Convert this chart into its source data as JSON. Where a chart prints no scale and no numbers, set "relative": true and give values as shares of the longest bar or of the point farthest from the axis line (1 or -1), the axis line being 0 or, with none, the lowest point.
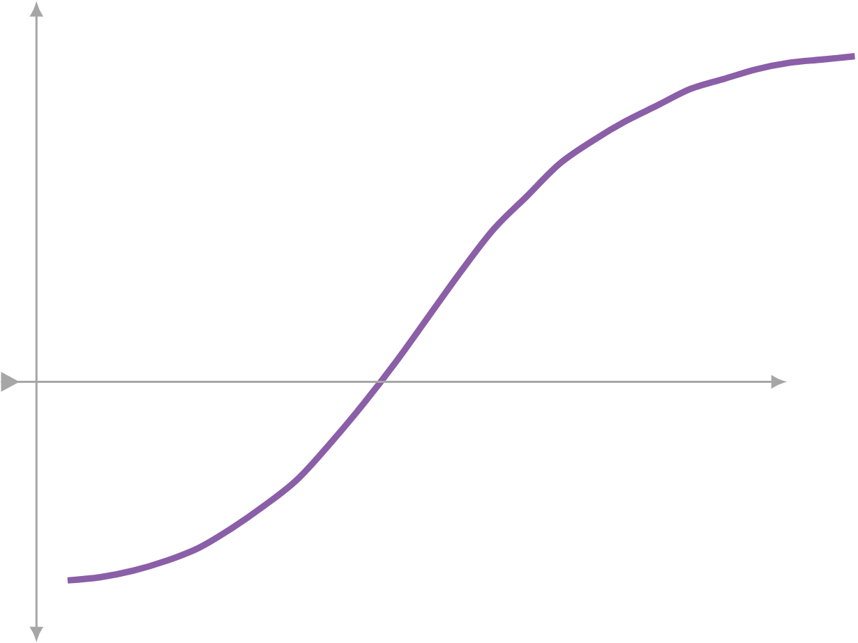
{
  "chart_data": {
    "type": "line",
    "relative": true,
    "color": "#8b5fa8",
    "categories": [
      null,
      null,
      null,
      null,
      null,
      null,
      null,
      null,
      null,
      null,
      null,
      null,
      null,
      null,
      null,
      null,
      null,
      null,
      null,
      null,
      null,
      null,
      null,
      null,
      null
    ],
    "values": [
      -0.61,
      -0.6,
      -0.58,
      -0.55,
      -0.51,
      -0.45,
      -0.38,
      -0.3,
      -0.19,
      -0.07,
      0.06,
      0.2,
      0.34,
      0.47,
      0.57,
      0.67,
      0.74,
      0.8,
      0.85,
      0.9,
      0.93,
      0.96,
      0.98,
      0.99,
      1
    ]
  }
}
